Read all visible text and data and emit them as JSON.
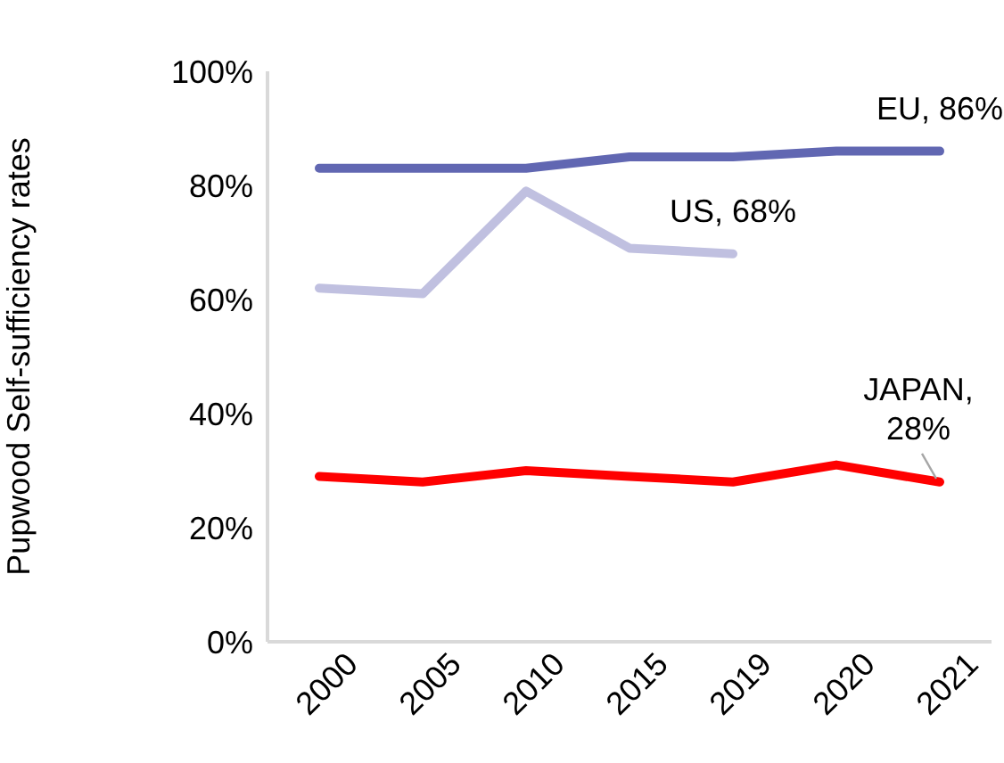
{
  "chart_data": {
    "type": "line",
    "ylabel": "Pupwood Self-sufficiency rates",
    "categories": [
      "2000",
      "2005",
      "2010",
      "2015",
      "2019",
      "2020",
      "2021"
    ],
    "series": [
      {
        "color": "#6167b2",
        "values": [
          83,
          83,
          83,
          85,
          85,
          86,
          86
        ]
      },
      {
        "color": "#c0c0e0",
        "values": [
          62,
          61,
          79,
          69,
          68,
          null,
          null
        ]
      },
      {
        "color": "#ff0000",
        "values": [
          29,
          28,
          30,
          29,
          28,
          31,
          28
        ]
      }
    ],
    "ylim": [
      0,
      100
    ],
    "yticks": [
      {
        "value": 0,
        "label": "0%"
      },
      {
        "value": 20,
        "label": "20%"
      },
      {
        "value": 40,
        "label": "40%"
      },
      {
        "value": 60,
        "label": "60%"
      },
      {
        "value": 80,
        "label": "80%"
      },
      {
        "value": 100,
        "label": "100%"
      }
    ],
    "annotations": [
      {
        "text": "EU, 86%",
        "x": "2021",
        "y": 86
      },
      {
        "text": "US, 68%",
        "x": "2019",
        "y": 68
      },
      {
        "text": "JAPAN, 28%",
        "x": "2021",
        "y": 28
      }
    ],
    "grid": false,
    "legend": false,
    "marker": "none",
    "line_style": "solid"
  }
}
